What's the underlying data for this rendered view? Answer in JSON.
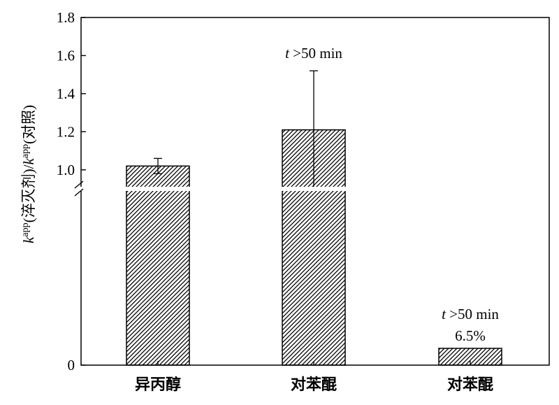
{
  "chart_data": {
    "type": "bar",
    "categories": [
      "异丙醇",
      "对苯醌",
      "对苯醌"
    ],
    "values": [
      1.02,
      1.21,
      0.06
    ],
    "error_upper": [
      1.06,
      1.52,
      null
    ],
    "error_lower": [
      0.98,
      0.9,
      null
    ],
    "yticks": [
      "0",
      "1.0",
      "1.2",
      "1.4",
      "1.6",
      "1.8"
    ],
    "ylim": [
      0,
      1.8
    ],
    "axis_break": true,
    "ylabel": {
      "part1": "k",
      "sup1": "app",
      "part2": "(淬灭剂)/",
      "part3": "k",
      "sup2": "app",
      "part4": "(对照)"
    },
    "annotations": [
      {
        "bar": 1,
        "t": "t",
        "rest": " >50 min"
      },
      {
        "bar": 2,
        "t": "t",
        "rest": " >50 min",
        "line2": "6.5%"
      }
    ],
    "bar_fill": "hatched",
    "bar_color": "#000000",
    "grid": false,
    "legend": false
  }
}
